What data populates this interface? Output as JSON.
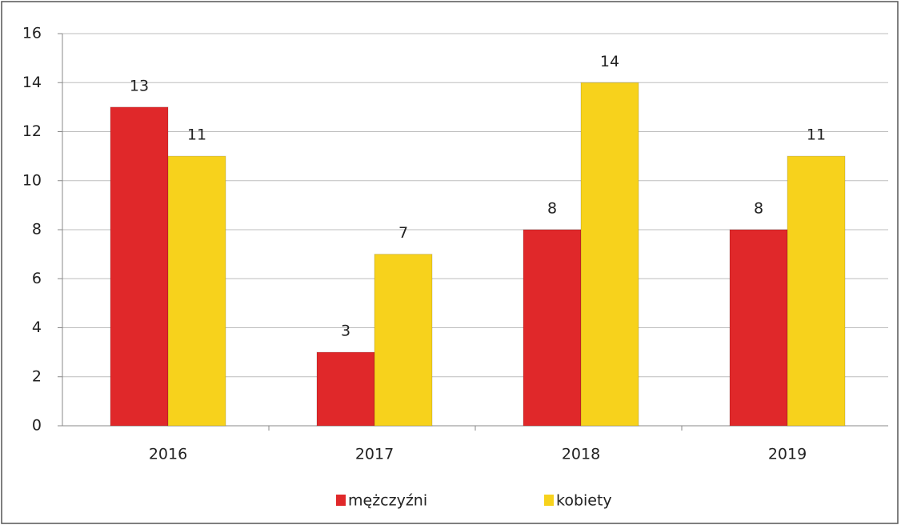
{
  "chart_data": {
    "type": "bar",
    "categories": [
      "2016",
      "2017",
      "2018",
      "2019"
    ],
    "series": [
      {
        "name": "mężczyźni",
        "color": "#e0282a",
        "values": [
          13,
          3,
          8,
          8
        ]
      },
      {
        "name": "kobiety",
        "color": "#f7d21c",
        "values": [
          11,
          7,
          14,
          11
        ]
      }
    ],
    "ylim": [
      0,
      16
    ],
    "yticks": [
      0,
      2,
      4,
      6,
      8,
      10,
      12,
      14,
      16
    ],
    "grid": true,
    "legend": "bottom"
  }
}
